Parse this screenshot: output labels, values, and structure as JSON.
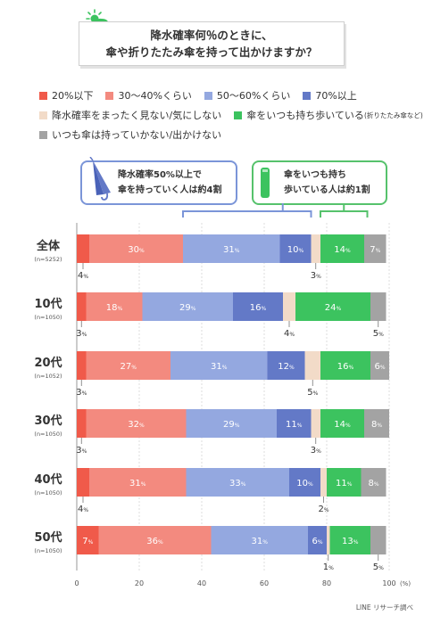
{
  "title": {
    "line1": "降水確率何％のときに、",
    "line2": "傘や折りたたみ傘を持って出かけますか？"
  },
  "legend": [
    {
      "label": "20%以下",
      "color": "#f05a4a"
    },
    {
      "label": "30～40%くらい",
      "color": "#f38a7f"
    },
    {
      "label": "50～60%くらい",
      "color": "#94a8e0"
    },
    {
      "label": "70%以上",
      "color": "#6379c7"
    },
    {
      "label": "降水確率をまったく見ない/気にしない",
      "color": "#f2dbc8"
    },
    {
      "label": "傘をいつも持ち歩いている",
      "note": "(折りたたみ傘など)",
      "color": "#3cc35f"
    },
    {
      "label": "いつも傘は持っていかない/出かけない",
      "color": "#a3a3a3"
    }
  ],
  "callouts": {
    "blue": {
      "line1": "降水確率50%以上で",
      "line2": "傘を持っていく人は約4割"
    },
    "green": {
      "line1": "傘をいつも持ち",
      "line2": "歩いている人は約1割"
    }
  },
  "chart_data": {
    "type": "bar",
    "orientation": "horizontal",
    "stacked": true,
    "xlim": [
      0,
      100
    ],
    "x_ticks": [
      "0",
      "20",
      "40",
      "60",
      "80",
      "100"
    ],
    "x_unit": "(%)",
    "categories": [
      {
        "label": "全体",
        "n": "(n=5252)"
      },
      {
        "label": "10代",
        "n": "(n=1050)"
      },
      {
        "label": "20代",
        "n": "(n=1052)"
      },
      {
        "label": "30代",
        "n": "(n=1050)"
      },
      {
        "label": "40代",
        "n": "(n=1050)"
      },
      {
        "label": "50代",
        "n": "(n=1050)"
      }
    ],
    "series": [
      {
        "name": "20%以下",
        "color": "#f05a4a",
        "values": [
          4,
          3,
          3,
          3,
          4,
          7
        ]
      },
      {
        "name": "30～40%くらい",
        "color": "#f38a7f",
        "values": [
          30,
          18,
          27,
          32,
          31,
          36
        ]
      },
      {
        "name": "50～60%くらい",
        "color": "#94a8e0",
        "values": [
          31,
          29,
          31,
          29,
          33,
          31
        ]
      },
      {
        "name": "70%以上",
        "color": "#6379c7",
        "values": [
          10,
          16,
          12,
          11,
          10,
          6
        ]
      },
      {
        "name": "降水確率をまったく見ない/気にしない",
        "color": "#f2dbc8",
        "values": [
          3,
          4,
          5,
          3,
          2,
          1
        ]
      },
      {
        "name": "傘をいつも持ち歩いている",
        "color": "#3cc35f",
        "values": [
          14,
          24,
          16,
          14,
          11,
          13
        ]
      },
      {
        "name": "いつも傘は持っていかない/出かけない",
        "color": "#a3a3a3",
        "values": [
          7,
          5,
          6,
          8,
          8,
          5
        ]
      }
    ],
    "labels": [
      [
        "4",
        "30",
        "31",
        "10",
        "3",
        "14",
        "7"
      ],
      [
        "3",
        "18",
        "29",
        "16",
        "4",
        "24",
        "5"
      ],
      [
        "3",
        "27",
        "31",
        "12",
        "5",
        "16",
        "6"
      ],
      [
        "3",
        "32",
        "29",
        "11",
        "3",
        "14",
        "8"
      ],
      [
        "4",
        "31",
        "33",
        "10",
        "2",
        "11",
        "8"
      ],
      [
        "7",
        "36",
        "31",
        "6",
        "1",
        "13",
        "5"
      ]
    ],
    "value_suffix": "%"
  },
  "source": "LINE リサーチ調べ"
}
